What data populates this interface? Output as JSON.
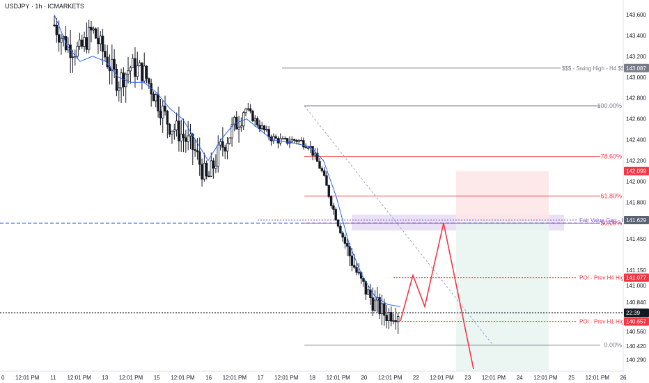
{
  "chart_data": {
    "type": "candlestick",
    "title": "USDJPY · 1h · ICMARKETS",
    "symbol": "USDJPY",
    "timeframe": "1h",
    "exchange": "ICMARKETS",
    "ylim": [
      140.18,
      143.74
    ],
    "y_ticks": [
      "143.600",
      "143.400",
      "143.200",
      "143.000",
      "142.800",
      "142.600",
      "142.400",
      "142.200",
      "142.000",
      "141.800",
      "141.450",
      "141.150",
      "141.000",
      "140.840",
      "140.560",
      "140.420",
      "140.290"
    ],
    "x_ticks": [
      "0",
      "12:01 PM",
      "11",
      "12:01 PM",
      "13",
      "12:01 PM",
      "15",
      "12:01 PM",
      "16",
      "12:01 PM",
      "17",
      "12:01 PM",
      "18",
      "12:01 PM",
      "20",
      "12:01 PM",
      "22",
      "12:01 PM",
      "23",
      "12:01 PM",
      "24",
      "12:01 PM",
      "25",
      "12:01 PM",
      "26"
    ],
    "price_badges": [
      {
        "label": "143.087",
        "color": "#787b86"
      },
      {
        "label": "142.099",
        "color": "#f23645"
      },
      {
        "label": "141.629",
        "color": "#5a6273"
      },
      {
        "label": "141.077",
        "color": "#f23645"
      },
      {
        "label": "22:39",
        "color": "#131722"
      },
      {
        "label": "140.657",
        "color": "#f23645"
      }
    ],
    "levels": [
      {
        "label": "$$$ - Swing High - H4 $$$",
        "price": 143.087,
        "color": "#787b86",
        "style": "solid"
      },
      {
        "label": "100.00%",
        "price": 142.725,
        "color": "#787b86",
        "style": "solid"
      },
      {
        "label": "78.60%",
        "price": 142.24,
        "color": "#f23645",
        "style": "solid"
      },
      {
        "label": "61.80%",
        "price": 141.86,
        "color": "#f23645",
        "style": "solid"
      },
      {
        "label": "50.00%",
        "price": 141.6,
        "color": "#f23645",
        "style": "solid"
      },
      {
        "label": "Fair Value Gap - H1",
        "price": 141.629,
        "color": "#7e57c2",
        "style": "dotted"
      },
      {
        "label": "POI - Prev H4 High",
        "price": 141.077,
        "color": "#f23645",
        "style": "dotted"
      },
      {
        "label": "POI - Prev H1 High",
        "price": 140.657,
        "color": "#f23645",
        "style": "dotted"
      },
      {
        "label": "0.00%",
        "price": 140.43,
        "color": "#787b86",
        "style": "solid"
      }
    ],
    "current_price": 140.74,
    "blue_level": 141.6,
    "close_path": [
      143.5,
      143.3,
      143.25,
      143.45,
      143.2,
      142.95,
      143.1,
      143.05,
      142.8,
      142.55,
      142.45,
      142.3,
      142.0,
      142.3,
      142.5,
      142.7,
      142.55,
      142.42,
      142.38,
      142.4,
      142.35,
      142.1,
      141.7,
      141.35,
      141.05,
      140.85,
      140.72,
      140.75
    ],
    "ema_path": [
      143.6,
      143.3,
      143.15,
      143.2,
      143.15,
      143.0,
      142.95,
      142.95,
      142.85,
      142.7,
      142.6,
      142.4,
      142.2,
      142.4,
      142.55,
      142.6,
      142.5,
      142.4,
      142.38,
      142.36,
      142.33,
      142.2,
      141.85,
      141.4,
      141.1,
      140.9,
      140.82,
      140.8
    ],
    "projection": [
      140.66,
      141.1,
      140.8,
      141.6,
      140.2
    ],
    "zones": [
      {
        "name": "fvg",
        "from": 141.53,
        "to": 141.68,
        "color": "#e7dcf6"
      },
      {
        "name": "stop",
        "from": 141.62,
        "to": 142.1,
        "color": "#fde5e5"
      },
      {
        "name": "target",
        "from": 140.18,
        "to": 141.62,
        "color": "#e7f4f1"
      }
    ]
  }
}
